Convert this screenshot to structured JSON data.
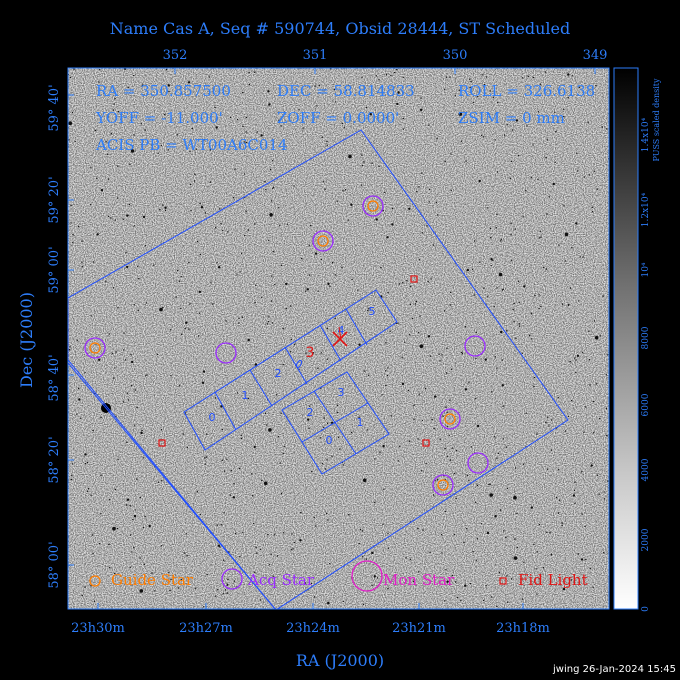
{
  "title": "Name Cas A, Seq # 590744, Obsid 28444, ST Scheduled",
  "info": {
    "ra": "RA = 350.857500",
    "dec": "DEC = 58.814833",
    "roll": "ROLL = 326.6138",
    "yoff": "YOFF = -11.000'",
    "zoff": "ZOFF =  0.0000'",
    "zsim": "ZSIM = 0 mm",
    "acis": "ACIS PB = WT00A6C014"
  },
  "axes": {
    "top_ticks": [
      "352",
      "351",
      "350",
      "349"
    ],
    "bottom_ticks": [
      "23h30m",
      "23h27m",
      "23h24m",
      "23h21m",
      "23h18m"
    ],
    "left_ticks": [
      "59° 40'",
      "59° 20'",
      "59° 00'",
      "58° 40'",
      "58° 20'",
      "58° 00'"
    ],
    "xlabel": "RA (J2000)",
    "ylabel": "Dec (J2000)"
  },
  "colorbar": {
    "label": "PUSS scaled density",
    "ticks": [
      "0",
      "2000",
      "4000",
      "6000",
      "8000",
      "10⁴",
      "1.2x10⁴",
      "1.4x10⁴"
    ]
  },
  "chips": {
    "i_array": [
      "0",
      "1",
      "2",
      "3",
      "4",
      "5"
    ],
    "s_array": [
      "2",
      "3",
      "0",
      "1"
    ],
    "target_marker": "3"
  },
  "legend": {
    "guide": "Guide Star",
    "acq": "Acq Star",
    "mon": "Mon Star",
    "fid": "Fid Light"
  },
  "footer": "jwing 26-Jan-2024 15:45",
  "colors": {
    "guide": "#ff7d00",
    "acq": "#9a2bff",
    "mon": "#e01ec8",
    "fid": "#e01414",
    "frame": "#1f4dff",
    "text": "#2d7dfa"
  }
}
